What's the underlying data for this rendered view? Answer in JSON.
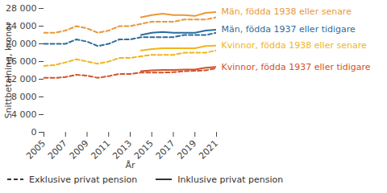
{
  "chart_data": {
    "type": "line",
    "x_label": "År",
    "y_label": "Snittbetalning, kronor",
    "x": [
      2005,
      2006,
      2007,
      2008,
      2009,
      2010,
      2011,
      2012,
      2013,
      2014,
      2015,
      2016,
      2017,
      2018,
      2019,
      2020,
      2021
    ],
    "xlim": [
      2005,
      2021
    ],
    "xticks": [
      2005,
      2007,
      2009,
      2011,
      2013,
      2015,
      2017,
      2019,
      2021
    ],
    "ylim": [
      0,
      28000
    ],
    "yticks": [
      0,
      {
        "value": 4000,
        "label": "4 000"
      },
      {
        "value": 8000,
        "label": "8 000"
      },
      {
        "value": 12000,
        "label": "12 000"
      },
      {
        "value": 16000,
        "label": "16 000"
      },
      {
        "value": 20000,
        "label": "20 000"
      },
      {
        "value": 24000,
        "label": "24 000"
      },
      {
        "value": 28000,
        "label": "28 000"
      }
    ],
    "grid": false,
    "legend": "bottom",
    "line_style_legend": [
      {
        "name": "Exklusive privat pension",
        "line_style": "dashed"
      },
      {
        "name": "Inklusive privat pension",
        "line_style": "solid"
      }
    ],
    "series": [
      {
        "name": "Män, födda 1938 eller senare",
        "color": "#e8993a",
        "line_style": "dashed",
        "values": [
          22500,
          22500,
          23000,
          24000,
          23500,
          22500,
          23000,
          24000,
          24000,
          24500,
          25000,
          25000,
          25000,
          25500,
          25500,
          25500,
          26000
        ]
      },
      {
        "name": "Män, födda 1938 eller senare",
        "color": "#e8993a",
        "line_style": "solid",
        "values": [
          null,
          null,
          null,
          null,
          null,
          null,
          null,
          null,
          null,
          26000,
          26500,
          26800,
          26500,
          26500,
          26300,
          27000,
          27200
        ]
      },
      {
        "name": "Män, födda 1937 eller tidigare",
        "color": "#2d6c9c",
        "line_style": "dashed",
        "values": [
          20000,
          20000,
          20000,
          21000,
          20500,
          19500,
          20000,
          21000,
          21000,
          21500,
          21500,
          21500,
          21500,
          22000,
          22000,
          22000,
          22500
        ]
      },
      {
        "name": "Män, födda 1937 eller tidigare",
        "color": "#2d6c9c",
        "line_style": "solid",
        "values": [
          null,
          null,
          null,
          null,
          null,
          null,
          null,
          null,
          null,
          22000,
          22500,
          22700,
          22500,
          22500,
          22500,
          23000,
          23200
        ]
      },
      {
        "name": "Kvinnor, födda 1938 eller senare",
        "color": "#f1b51c",
        "line_style": "dashed",
        "values": [
          15000,
          15200,
          15800,
          16500,
          16000,
          15500,
          16000,
          16800,
          16800,
          17200,
          17500,
          17500,
          17500,
          18000,
          18000,
          18000,
          18500
        ]
      },
      {
        "name": "Kvinnor, födda 1938 eller senare",
        "color": "#f1b51c",
        "line_style": "solid",
        "values": [
          null,
          null,
          null,
          null,
          null,
          null,
          null,
          null,
          null,
          18500,
          18800,
          19000,
          19000,
          19000,
          19000,
          19500,
          19600
        ]
      },
      {
        "name": "Kvinnor, födda 1937 eller tidigare",
        "color": "#d2522a",
        "line_style": "dashed",
        "values": [
          12300,
          12300,
          12500,
          13000,
          12800,
          12300,
          12700,
          13200,
          13200,
          13500,
          13500,
          13500,
          13600,
          13800,
          13900,
          14000,
          14500
        ]
      },
      {
        "name": "Kvinnor, födda 1937 eller tidigare",
        "color": "#d2522a",
        "line_style": "solid",
        "values": [
          null,
          null,
          null,
          null,
          null,
          null,
          null,
          null,
          null,
          13800,
          14000,
          14100,
          14100,
          14200,
          14200,
          14600,
          14800
        ]
      }
    ]
  }
}
